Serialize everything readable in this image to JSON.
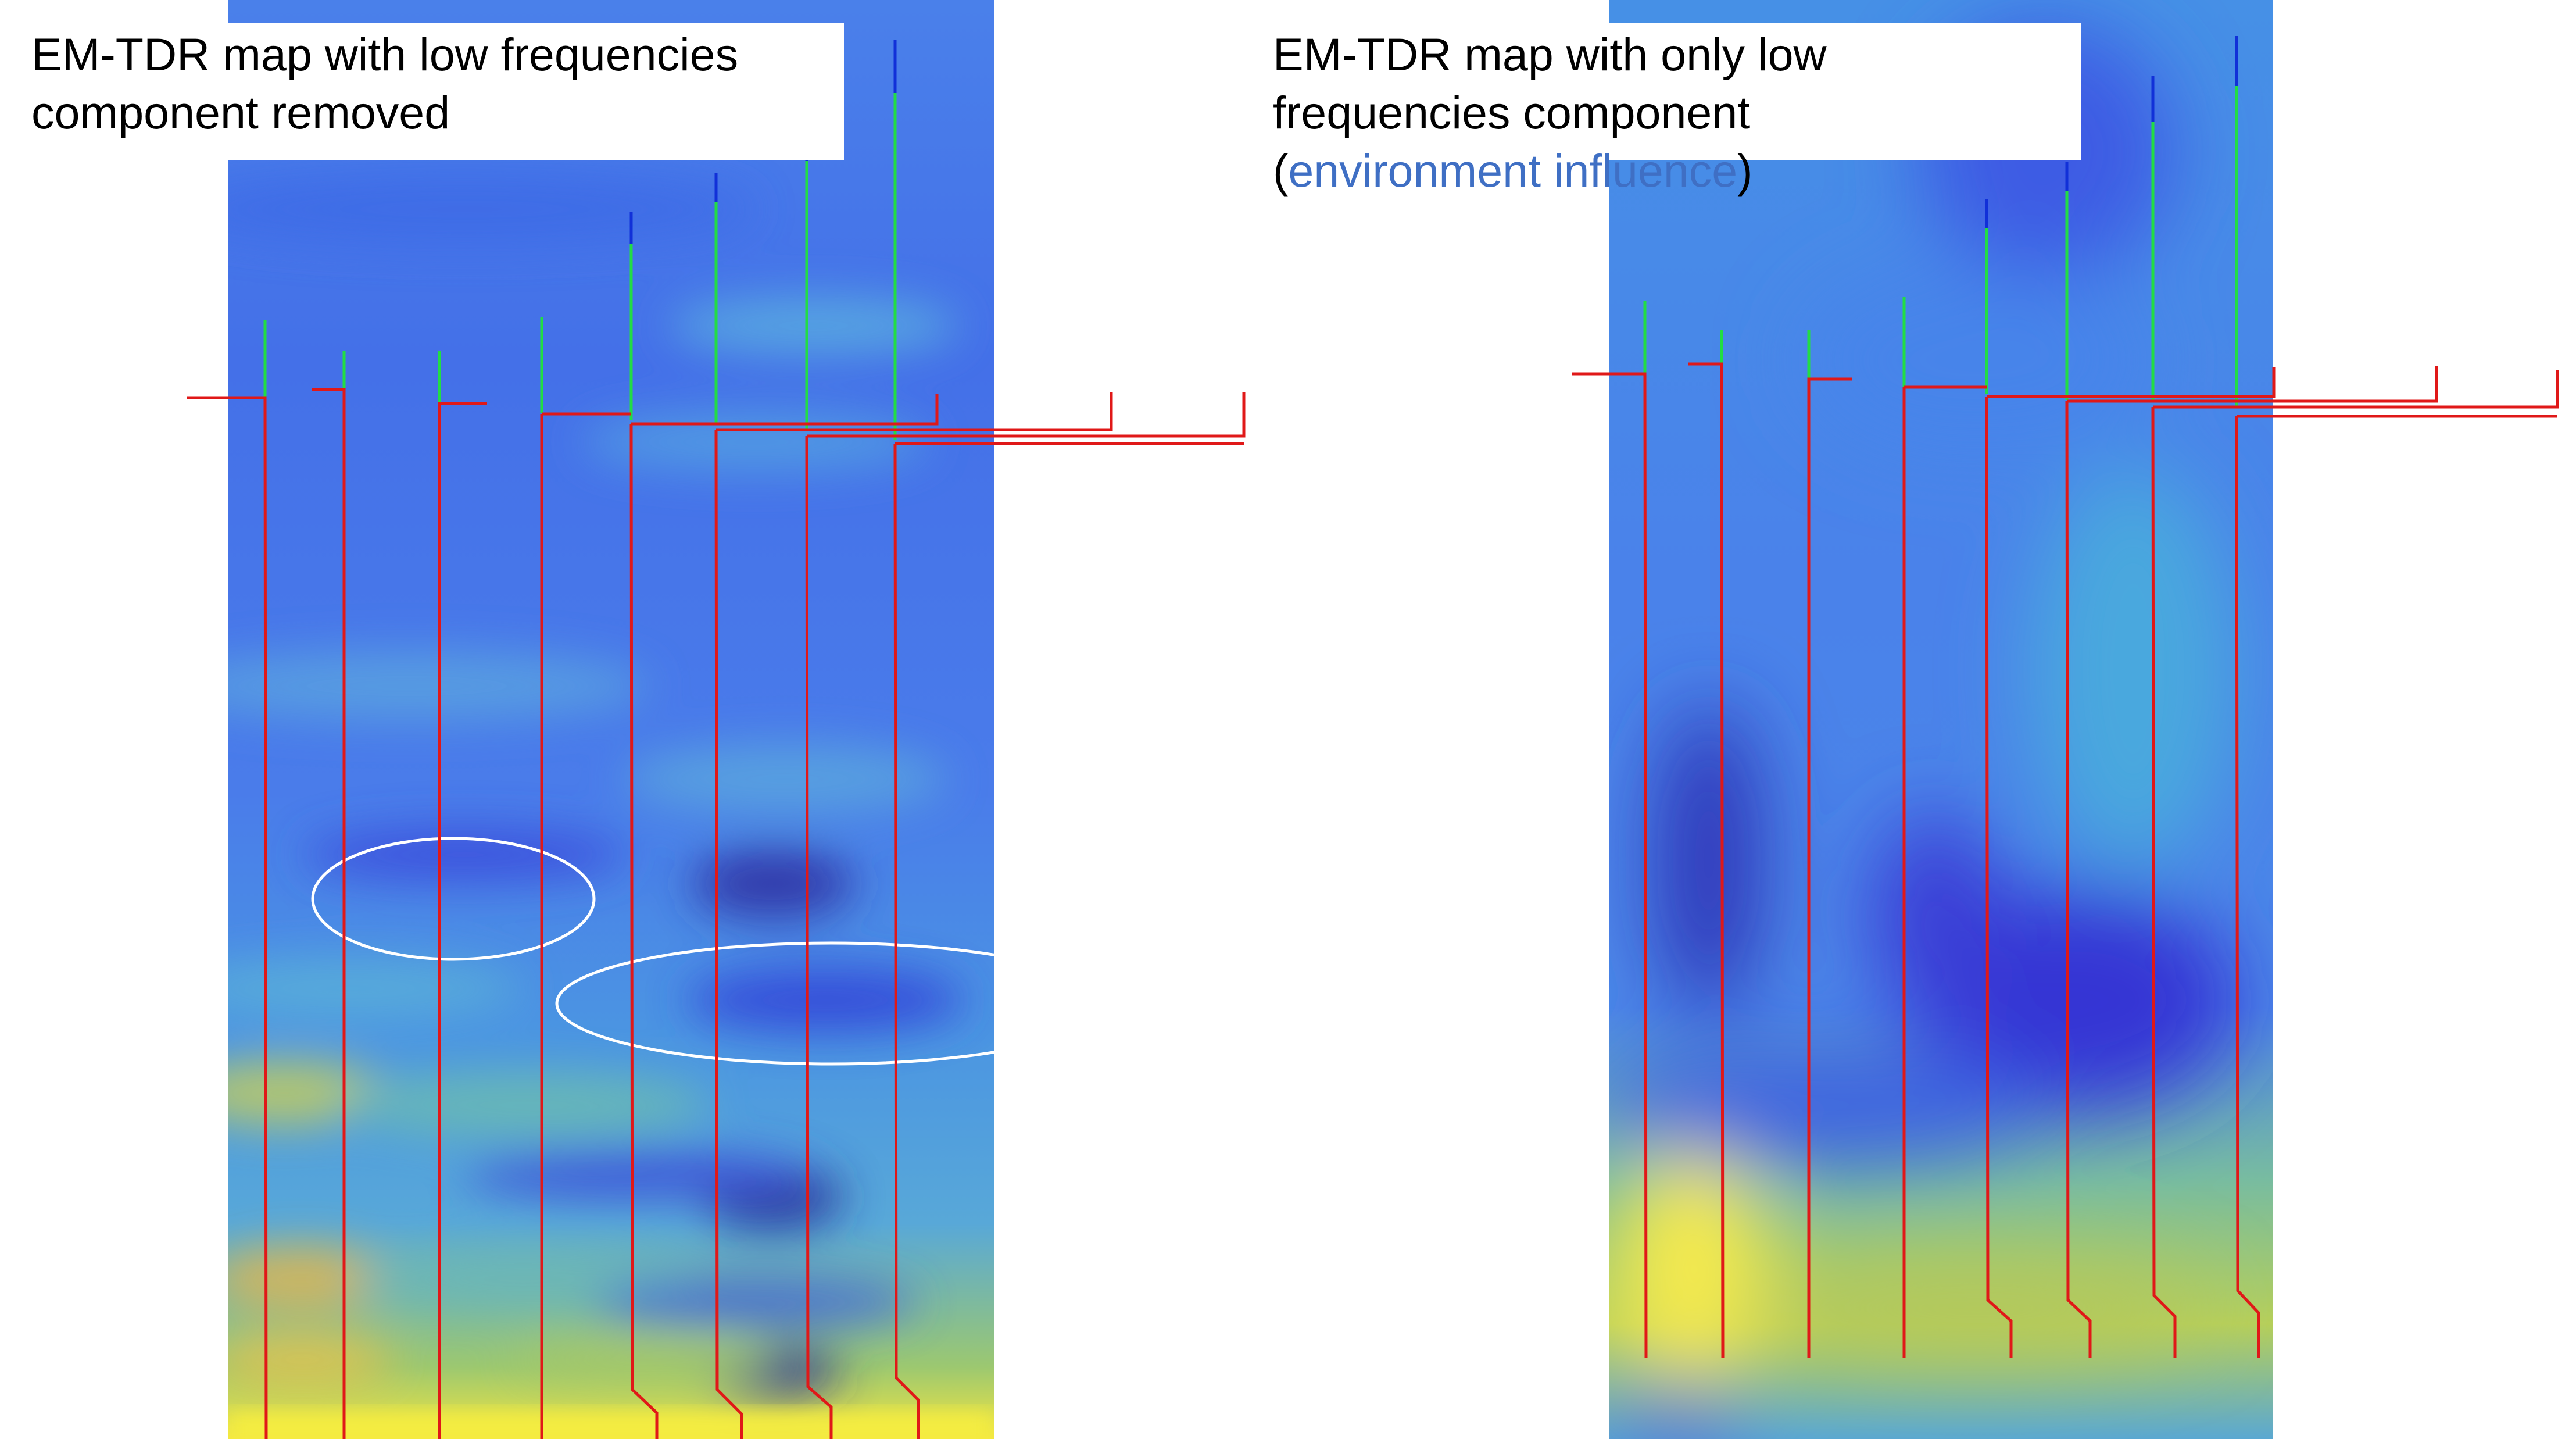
{
  "panels": [
    {
      "caption": [
        "EM-TDR map with low frequencies",
        "component removed"
      ]
    },
    {
      "caption": [
        "EM-TDR map with only low",
        "frequencies component"
      ],
      "caption_line3": {
        "open": "(",
        "highlight": "environment influence",
        "close": ")"
      }
    }
  ],
  "colors": {
    "map_base": "#4878e8",
    "map_low": "#3c3ee0",
    "map_dark": "#252a9a",
    "map_cyan": "#49a6e0",
    "map_green": "#7fc48a",
    "map_yellow": "#f5ee4a",
    "map_orange": "#e8b84a",
    "wire_red": "#e01818",
    "stub_green": "#22dd44",
    "stub_blue": "#1130d8",
    "ellipse": "#ffffff",
    "caption_accent": "#3f6fc4"
  }
}
